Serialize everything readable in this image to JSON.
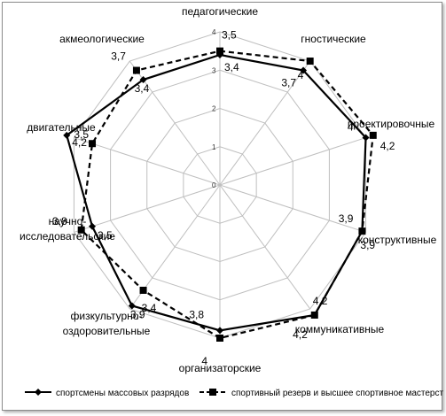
{
  "chart_data": {
    "type": "radar",
    "title": "",
    "rlim": [
      0,
      4
    ],
    "ticks": [
      "0",
      "1",
      "2",
      "3",
      "4"
    ],
    "grid": true,
    "legend_position": "bottom",
    "categories": [
      [
        "педагогические"
      ],
      [
        "гностические"
      ],
      [
        "проектировочные"
      ],
      [
        "конструктивные"
      ],
      [
        "коммуникативные"
      ],
      [
        "организаторские"
      ],
      [
        "физкультурно-",
        "оздоровительные"
      ],
      [
        "научно-",
        "исследовательские"
      ],
      [
        "двигательные"
      ],
      [
        "акмеологические"
      ]
    ],
    "series": [
      {
        "name": "спортсмены массовых разрядов",
        "values": [
          3.4,
          3.7,
          4.0,
          3.9,
          4.2,
          3.8,
          3.9,
          3.5,
          4.2,
          3.4
        ],
        "value_labels": [
          "3,4",
          "3,7",
          "4",
          "3,9",
          "4,2",
          "3,8",
          "3,9",
          "3,5",
          "4,2",
          "3,4"
        ],
        "color": "#000000",
        "line_style": "solid",
        "marker": "diamond"
      },
      {
        "name": "спортивный резерв и высшее спортивное мастерство",
        "values": [
          3.5,
          4.0,
          4.2,
          3.9,
          4.2,
          4.0,
          3.4,
          3.8,
          3.5,
          3.7
        ],
        "value_labels": [
          "3,5",
          "4",
          "4,2",
          "3,9",
          "4,2",
          "4",
          "3,4",
          "3,8",
          "3,5",
          "3,7"
        ],
        "color": "#000000",
        "line_style": "dashed",
        "marker": "square"
      }
    ]
  }
}
